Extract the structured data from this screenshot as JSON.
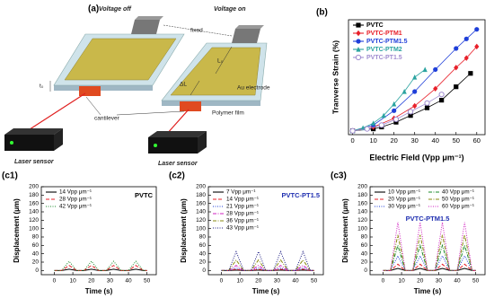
{
  "diagram": {
    "panel_label": "(a)",
    "voltage_off": "Voltage off",
    "voltage_on": "Voltage on",
    "fixed": "fixed",
    "length": "L₀",
    "delta_length": "ΔL",
    "thickness": "t₀",
    "electrode": "Au electrode",
    "film": "Polymer film",
    "cantilever": "cantilever",
    "sensor_left": "Laser sensor",
    "sensor_right": "Laser sensor"
  },
  "chart_data": [
    {
      "type": "line",
      "panel_label": "(b)",
      "xlabel": "Electric Field (Vpp μm⁻¹)",
      "ylabel": "Tranverse Strain (%)",
      "xlim": [
        -2,
        64
      ],
      "ylim": [
        0,
        1.2
      ],
      "xticks": [
        0,
        10,
        20,
        30,
        40,
        50,
        60
      ],
      "legend": "upper left",
      "series": [
        {
          "name": "PVTC",
          "color": "#000000",
          "marker": "square",
          "x": [
            0,
            10,
            14,
            21,
            28,
            36,
            43,
            50,
            57
          ],
          "values": [
            0.04,
            0.06,
            0.08,
            0.13,
            0.2,
            0.28,
            0.36,
            0.5,
            0.64
          ]
        },
        {
          "name": "PVTC-PTM1",
          "color": "#e8202a",
          "marker": "diamond",
          "x": [
            0,
            10,
            20,
            30,
            40,
            50,
            55,
            60
          ],
          "values": [
            0.04,
            0.08,
            0.17,
            0.3,
            0.48,
            0.7,
            0.8,
            0.92
          ]
        },
        {
          "name": "PVTC-PTM1.5",
          "color": "#1f3fd9",
          "marker": "circle",
          "x": [
            0,
            10,
            20,
            30,
            40,
            50,
            55,
            60
          ],
          "values": [
            0.04,
            0.1,
            0.25,
            0.45,
            0.68,
            0.9,
            1.0,
            1.1
          ]
        },
        {
          "name": "PVTC-PTM2",
          "color": "#2aa3a0",
          "marker": "triangle",
          "x": [
            0,
            5,
            10,
            15,
            20,
            25,
            30,
            35
          ],
          "values": [
            0.04,
            0.07,
            0.12,
            0.2,
            0.32,
            0.45,
            0.6,
            0.68
          ]
        },
        {
          "name": "PVTC-PT1.5",
          "color": "#a08cd0",
          "marker": "open-circle",
          "x": [
            0,
            7,
            14,
            21,
            28,
            36,
            43
          ],
          "values": [
            0.04,
            0.06,
            0.1,
            0.16,
            0.24,
            0.33,
            0.42
          ]
        }
      ]
    },
    {
      "type": "line",
      "panel_label": "(c1)",
      "annotation": "PVTC",
      "annotation_color": "#000000",
      "xlabel": "Time (s)",
      "ylabel": "Displacement (μm)",
      "xlim": [
        -7,
        55
      ],
      "ylim": [
        -10,
        200
      ],
      "xticks": [
        0,
        10,
        20,
        30,
        40,
        50
      ],
      "yticks": [
        0,
        20,
        40,
        60,
        80,
        100,
        120,
        140,
        160,
        180,
        200
      ],
      "legend_columns": 1,
      "x": [
        0,
        2,
        4,
        6,
        8,
        10,
        12,
        14,
        16,
        18,
        20,
        22,
        24,
        26,
        28,
        30,
        32,
        34,
        36,
        38,
        40,
        42,
        44,
        46,
        48,
        50
      ],
      "series": [
        {
          "name": "14  Vpp μm⁻¹",
          "color": "#000000",
          "dash": "solid",
          "values": [
            0,
            0,
            0,
            1.5,
            3,
            1.5,
            0,
            0,
            0,
            1.5,
            3,
            1.5,
            0,
            0,
            0,
            1.5,
            3,
            1.5,
            0,
            0,
            0,
            1.5,
            3,
            1.5,
            0,
            0
          ]
        },
        {
          "name": "28  Vpp μm⁻¹",
          "color": "#e8202a",
          "dash": "dashed",
          "values": [
            0,
            0,
            0,
            6,
            12,
            6,
            0,
            0,
            0,
            6,
            12,
            6,
            0,
            0,
            0,
            6,
            12,
            6,
            0,
            0,
            0,
            6,
            12,
            6,
            0,
            0
          ]
        },
        {
          "name": "42  Vpp μm⁻¹",
          "color": "#1a8a2a",
          "dash": "dotted",
          "values": [
            0,
            0,
            0,
            11,
            22,
            11,
            0,
            0,
            0,
            11,
            22,
            11,
            0,
            0,
            0,
            11,
            22,
            11,
            0,
            0,
            0,
            11,
            22,
            11,
            0,
            0
          ]
        }
      ]
    },
    {
      "type": "line",
      "panel_label": "(c2)",
      "annotation": "PVTC-PT1.5",
      "annotation_color": "#1f2fb0",
      "xlabel": "Time (s)",
      "ylabel": "Displacement (μm)",
      "xlim": [
        -7,
        55
      ],
      "ylim": [
        -10,
        200
      ],
      "xticks": [
        0,
        10,
        20,
        30,
        40,
        50
      ],
      "yticks": [
        0,
        20,
        40,
        60,
        80,
        100,
        120,
        140,
        160,
        180,
        200
      ],
      "legend_columns": 1,
      "x": [
        0,
        2,
        4,
        6,
        8,
        10,
        12,
        14,
        16,
        18,
        20,
        22,
        24,
        26,
        28,
        30,
        32,
        34,
        36,
        38,
        40,
        42,
        44,
        46,
        48,
        50
      ],
      "series": [
        {
          "name": "7  Vpp μm⁻¹",
          "color": "#000000",
          "dash": "solid",
          "values": [
            0,
            0,
            0,
            0.5,
            1,
            0.5,
            0,
            0,
            0,
            0.5,
            1,
            0.5,
            0,
            0,
            0,
            0.5,
            1,
            0.5,
            0,
            0,
            0,
            0.5,
            1,
            0.5,
            0,
            0
          ]
        },
        {
          "name": "14  Vpp μm⁻¹",
          "color": "#e8202a",
          "dash": "dashed",
          "values": [
            0,
            0,
            0,
            1.5,
            3,
            1.5,
            0,
            0,
            0,
            1.5,
            3,
            1.5,
            0,
            0,
            0,
            1.5,
            3,
            1.5,
            0,
            0,
            0,
            1.5,
            3,
            1.5,
            0,
            0
          ]
        },
        {
          "name": "21  Vpp μm⁻¹",
          "color": "#1f3fd9",
          "dash": "dotted",
          "values": [
            0,
            0,
            0,
            3,
            6,
            3,
            0,
            0,
            0,
            3,
            6,
            3,
            0,
            0,
            0,
            3,
            6,
            3,
            0,
            0,
            0,
            3,
            6,
            3,
            0,
            0
          ]
        },
        {
          "name": "28  Vpp μm⁻¹",
          "color": "#d020c0",
          "dash": "dashdot",
          "values": [
            0,
            0,
            0,
            6,
            12,
            6,
            0,
            0,
            0,
            6,
            12,
            6,
            0,
            0,
            0,
            6,
            12,
            6,
            0,
            0,
            0,
            6,
            12,
            6,
            0,
            0
          ]
        },
        {
          "name": "36  Vpp μm⁻¹",
          "color": "#8a8a10",
          "dash": "dashdot",
          "values": [
            0,
            0,
            0,
            12.5,
            25,
            12.5,
            0,
            0,
            0,
            12.5,
            25,
            12.5,
            0,
            0,
            0,
            12.5,
            25,
            12.5,
            0,
            0,
            0,
            12.5,
            25,
            12.5,
            0,
            0
          ]
        },
        {
          "name": "43  Vpp μm⁻¹",
          "color": "#1a1a80",
          "dash": "dotted",
          "values": [
            0,
            0,
            0,
            22.5,
            45,
            22.5,
            0,
            0,
            0,
            22.5,
            45,
            22.5,
            0,
            0,
            0,
            22.5,
            45,
            22.5,
            0,
            0,
            0,
            22.5,
            45,
            22.5,
            0,
            0
          ]
        }
      ]
    },
    {
      "type": "line",
      "panel_label": "(c3)",
      "annotation": "PVTC-PTM1.5",
      "annotation_color": "#1f2fb0",
      "xlabel": "Time (s)",
      "ylabel": "Displacement (μm)",
      "xlim": [
        -7,
        55
      ],
      "ylim": [
        -10,
        200
      ],
      "xticks": [
        0,
        10,
        20,
        30,
        40,
        50
      ],
      "yticks": [
        0,
        20,
        40,
        60,
        80,
        100,
        120,
        140,
        160,
        180,
        200
      ],
      "legend_columns": 2,
      "x": [
        0,
        2,
        4,
        6,
        8,
        10,
        12,
        14,
        16,
        18,
        20,
        22,
        24,
        26,
        28,
        30,
        32,
        34,
        36,
        38,
        40,
        42,
        44,
        46,
        48,
        50
      ],
      "series": [
        {
          "name": "10 Vpp μm⁻¹",
          "color": "#000000",
          "dash": "solid",
          "values": [
            0,
            0,
            0,
            2.5,
            5,
            2.5,
            0,
            0,
            0,
            2.5,
            5,
            2.5,
            0,
            0,
            0,
            2.5,
            5,
            2.5,
            0,
            0,
            0,
            2.5,
            5,
            2.5,
            0,
            0
          ]
        },
        {
          "name": "20 Vpp μm⁻¹",
          "color": "#e8202a",
          "dash": "dashed",
          "values": [
            0,
            0,
            0,
            7.5,
            15,
            7.5,
            0,
            0,
            0,
            7.5,
            15,
            7.5,
            0,
            0,
            0,
            7.5,
            15,
            7.5,
            0,
            0,
            0,
            7.5,
            15,
            7.5,
            0,
            0
          ]
        },
        {
          "name": "30 Vpp μm⁻¹",
          "color": "#1f3fd9",
          "dash": "dotted",
          "values": [
            0,
            0,
            0,
            17.5,
            35,
            17.5,
            0,
            0,
            0,
            17.5,
            35,
            17.5,
            0,
            0,
            0,
            17.5,
            35,
            17.5,
            0,
            0,
            0,
            17.5,
            35,
            17.5,
            0,
            0
          ]
        },
        {
          "name": "40 Vpp μm⁻¹",
          "color": "#1a8a2a",
          "dash": "dashdot",
          "values": [
            0,
            0,
            0,
            30,
            60,
            30,
            0,
            0,
            0,
            30,
            60,
            30,
            0,
            0,
            0,
            30,
            60,
            30,
            0,
            0,
            0,
            30,
            60,
            30,
            0,
            0
          ]
        },
        {
          "name": "50 Vpp μm⁻¹",
          "color": "#8a8a10",
          "dash": "dashdot",
          "values": [
            0,
            0,
            0,
            42.5,
            85,
            42.5,
            0,
            0,
            0,
            42.5,
            85,
            42.5,
            0,
            0,
            0,
            42.5,
            85,
            42.5,
            0,
            0,
            0,
            42.5,
            85,
            42.5,
            0,
            0
          ]
        },
        {
          "name": "60 Vpp μm⁻¹",
          "color": "#d020c0",
          "dash": "dotted",
          "values": [
            0,
            0,
            0,
            57.5,
            115,
            57.5,
            0,
            0,
            0,
            57.5,
            115,
            57.5,
            0,
            0,
            0,
            57.5,
            115,
            57.5,
            0,
            0,
            0,
            57.5,
            115,
            57.5,
            0,
            0
          ]
        }
      ]
    }
  ]
}
